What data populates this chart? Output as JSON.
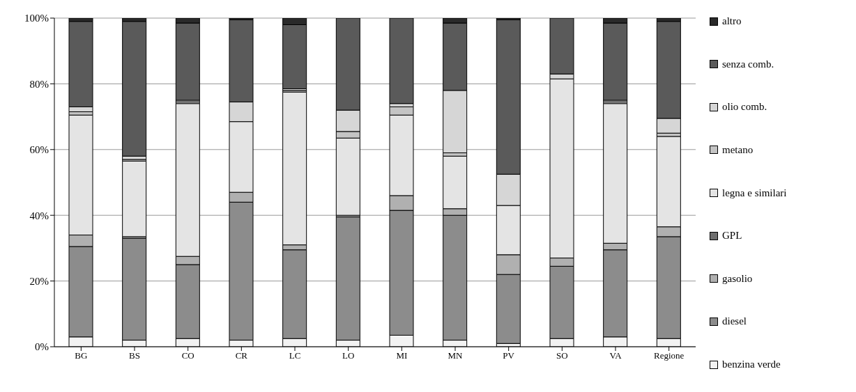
{
  "chart_data": {
    "type": "bar",
    "stacked": true,
    "categories": [
      "BG",
      "BS",
      "CO",
      "CR",
      "LC",
      "LO",
      "MI",
      "MN",
      "PV",
      "SO",
      "VA",
      "Regione"
    ],
    "series": [
      {
        "name": "benzina verde",
        "color": "#f2f2f2",
        "values": [
          3,
          2,
          2.5,
          2,
          2.5,
          2,
          3.5,
          2,
          1,
          2.5,
          3,
          2.5
        ]
      },
      {
        "name": "diesel",
        "color": "#8c8c8c",
        "values": [
          27.5,
          31,
          22.5,
          42,
          27,
          37.5,
          38,
          38,
          21,
          22,
          26.5,
          31
        ]
      },
      {
        "name": "gasolio",
        "color": "#b0b0b0",
        "values": [
          3.5,
          0.5,
          2.5,
          3,
          1.5,
          0.5,
          4.5,
          2,
          6,
          2.5,
          2,
          3
        ]
      },
      {
        "name": "GPL",
        "color": "#6e6e6e",
        "values": [
          0,
          0,
          0,
          0,
          0,
          0,
          0,
          0,
          0,
          0,
          0,
          0
        ]
      },
      {
        "name": "legna e similari",
        "color": "#e4e4e4",
        "values": [
          36.5,
          23,
          46.5,
          21.5,
          46.5,
          23.5,
          24.5,
          16,
          15,
          54.5,
          42.5,
          27.5
        ]
      },
      {
        "name": "metano",
        "color": "#c4c4c4",
        "values": [
          1,
          0.5,
          0.5,
          0,
          0.5,
          2,
          2.5,
          1,
          0,
          0,
          0.5,
          1
        ]
      },
      {
        "name": "olio comb.",
        "color": "#d6d6d6",
        "values": [
          1.5,
          1,
          0.5,
          6,
          0.5,
          6.5,
          1,
          19,
          9.5,
          1.5,
          0.5,
          4.5
        ]
      },
      {
        "name": "senza comb.",
        "color": "#5a5a5a",
        "values": [
          26,
          41,
          23.5,
          25,
          19.5,
          28,
          26,
          20.5,
          47,
          17,
          23.5,
          29.5
        ]
      },
      {
        "name": "altro",
        "color": "#2a2a2a",
        "values": [
          1,
          1,
          1.5,
          0.5,
          2,
          0,
          0,
          1.5,
          0.5,
          0,
          1.5,
          1
        ]
      }
    ],
    "ylim": [
      0,
      100
    ],
    "yticks": [
      {
        "value": 0,
        "label": "0%"
      },
      {
        "value": 20,
        "label": "20%"
      },
      {
        "value": 40,
        "label": "40%"
      },
      {
        "value": 60,
        "label": "60%"
      },
      {
        "value": 80,
        "label": "80%"
      },
      {
        "value": 100,
        "label": "100%"
      }
    ],
    "grid": "y",
    "legend": "right"
  }
}
